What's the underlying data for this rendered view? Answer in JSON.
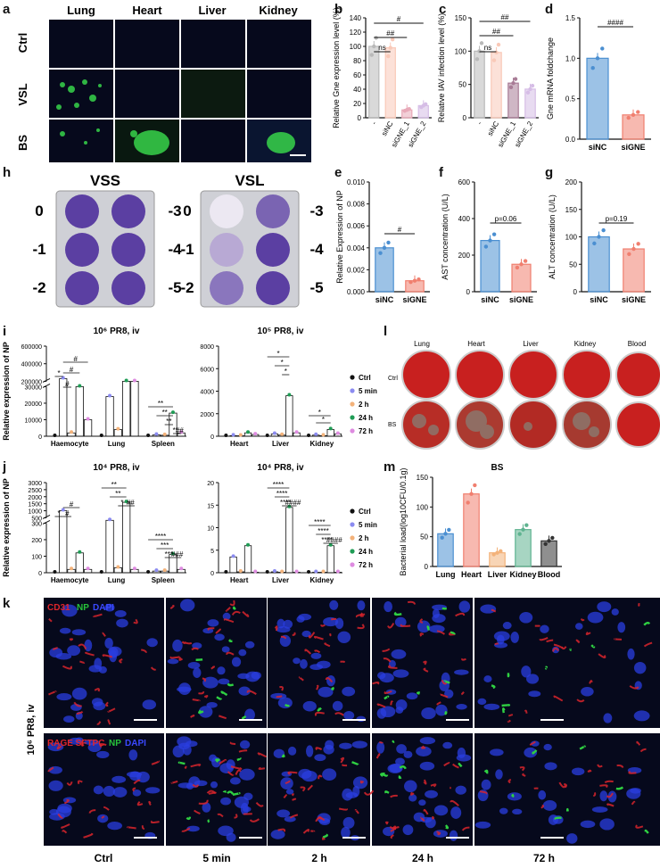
{
  "panel_letters": {
    "a": "a",
    "b": "b",
    "c": "c",
    "d": "d",
    "e": "e",
    "f": "f",
    "g": "g",
    "h": "h",
    "i": "i",
    "j": "j",
    "k": "k",
    "l": "l",
    "m": "m"
  },
  "panel_a": {
    "columns": [
      "Lung",
      "Heart",
      "Liver",
      "Kidney"
    ],
    "rows": [
      "Ctrl",
      "VSL",
      "BS"
    ]
  },
  "panel_h": {
    "titles": [
      "VSS",
      "VSL"
    ],
    "left_labels": [
      "0",
      "-1",
      "-2"
    ],
    "right_labels": [
      "-3",
      "-4",
      "-5"
    ]
  },
  "panel_k": {
    "top_legend": [
      "CD31",
      "NP",
      "DAPI"
    ],
    "bottom_legend": [
      "RAGE SFTPC",
      "NP",
      "DAPI"
    ],
    "legend_colors": [
      "#e0262b",
      "#27c23a",
      "#3b49ff"
    ],
    "side_label": "10⁶ PR8, iv",
    "timepoints": [
      "Ctrl",
      "5 min",
      "2 h",
      "24 h",
      "72 h"
    ]
  },
  "panel_l": {
    "columns": [
      "Lung",
      "Heart",
      "Liver",
      "Kidney",
      "Blood"
    ],
    "rows": [
      "Ctrl",
      "BS"
    ]
  },
  "timecourse_legend": {
    "labels": [
      "Ctrl",
      "5 min",
      "2 h",
      "24 h",
      "72 h"
    ],
    "colors": [
      "#111111",
      "#8b8bf0",
      "#f3b27a",
      "#1f9c55",
      "#de8be0"
    ]
  },
  "chart_data": [
    {
      "id": "b",
      "type": "bar",
      "categories": [
        "-",
        "siNC",
        "siGNE_1",
        "siGNE_2"
      ],
      "values": [
        100,
        98,
        11,
        17
      ],
      "ylabel": "Relative Gne expression level (%)",
      "ylim": [
        0,
        140
      ],
      "yticks": [
        0,
        20,
        40,
        60,
        80,
        100,
        120,
        140
      ],
      "colors": [
        "#b9b9b9",
        "#f9c9b8",
        "#e8a9b8",
        "#d6bde6"
      ],
      "annotations": [
        "ns",
        "##",
        "#"
      ]
    },
    {
      "id": "c",
      "type": "bar",
      "categories": [
        "-",
        "siNC",
        "siGNE_1",
        "siGNE_2"
      ],
      "values": [
        100,
        98,
        52,
        43
      ],
      "ylabel": "Relative IAV infection level (%)",
      "ylim": [
        0,
        150
      ],
      "yticks": [
        0,
        50,
        100,
        150
      ],
      "colors": [
        "#b9b9b9",
        "#f9c9b8",
        "#a87c96",
        "#d6bde6"
      ],
      "annotations": [
        "ns",
        "##",
        "##"
      ]
    },
    {
      "id": "d",
      "type": "bar",
      "categories": [
        "siNC",
        "siGNE"
      ],
      "values": [
        1.0,
        0.3
      ],
      "ylabel": "Gne mRNA foldchange",
      "ylim": [
        0,
        1.5
      ],
      "yticks": [
        "0.0",
        "0.5",
        "1.0",
        "1.5"
      ],
      "colors": [
        "#4b8fd1",
        "#f07f6f"
      ],
      "annotations": [
        "####"
      ]
    },
    {
      "id": "e",
      "type": "bar",
      "categories": [
        "siNC",
        "siGNE"
      ],
      "values": [
        0.004,
        0.001
      ],
      "ylabel": "Relative Expression of NP",
      "ylim": [
        0,
        0.01
      ],
      "yticks": [
        "0.000",
        "0.002",
        "0.004",
        "0.006",
        "0.008",
        "0.010"
      ],
      "colors": [
        "#4b8fd1",
        "#f07f6f"
      ],
      "annotations": [
        "#"
      ]
    },
    {
      "id": "f",
      "type": "bar",
      "categories": [
        "siNC",
        "siGNE"
      ],
      "values": [
        280,
        150
      ],
      "ylabel": "AST concentration (U/L)",
      "ylim": [
        0,
        600
      ],
      "yticks": [
        0,
        200,
        400,
        600
      ],
      "colors": [
        "#4b8fd1",
        "#f07f6f"
      ],
      "annotations": [
        "p=0.06"
      ]
    },
    {
      "id": "g",
      "type": "bar",
      "categories": [
        "siNC",
        "siGNE"
      ],
      "values": [
        100,
        78
      ],
      "ylabel": "ALT concentration (U/L)",
      "ylim": [
        0,
        200
      ],
      "yticks": [
        0,
        50,
        100,
        150,
        200
      ],
      "colors": [
        "#4b8fd1",
        "#f07f6f"
      ],
      "annotations": [
        "p=0.19"
      ]
    },
    {
      "id": "i-left",
      "type": "bar",
      "title": "10⁶ PR8,  iv",
      "ylabel": "Relative expression of NP",
      "categories": [
        "Haemocyte",
        "Lung",
        "Spleen"
      ],
      "series_names": [
        "Ctrl",
        "5 min",
        "2 h",
        "24 h",
        "72 h"
      ],
      "values": [
        [
          0,
          230000,
          2000,
          30000,
          10000
        ],
        [
          0,
          24000,
          4000,
          200000,
          200000
        ],
        [
          0,
          800,
          600,
          14000,
          2000
        ]
      ],
      "yticks_lower": [
        "0",
        "10000",
        "20000",
        "30000"
      ],
      "yticks_upper": [
        "200000",
        "400000",
        "600000"
      ],
      "annotations": [
        "*",
        "#",
        "#",
        "#",
        "**",
        "**",
        "**",
        "**",
        "##"
      ]
    },
    {
      "id": "i-right",
      "type": "bar",
      "title": "10⁵ PR8,  iv",
      "categories": [
        "Heart",
        "Liver",
        "Kidney"
      ],
      "series_names": [
        "Ctrl",
        "5 min",
        "2 h",
        "24 h",
        "72 h"
      ],
      "values": [
        [
          0,
          50,
          40,
          300,
          150
        ],
        [
          0,
          200,
          100,
          3600,
          300
        ],
        [
          0,
          100,
          50,
          600,
          200
        ]
      ],
      "ylim": [
        0,
        8000
      ],
      "yticks": [
        "0",
        "2000",
        "4000",
        "6000",
        "8000"
      ],
      "annotations": [
        "*",
        "*",
        "*",
        "*",
        "*"
      ]
    },
    {
      "id": "j-left",
      "type": "bar",
      "title": "10⁴ PR8,  iv",
      "ylabel": "Relative expression of NP",
      "categories": [
        "Haemocyte",
        "Lung",
        "Spleen"
      ],
      "series_names": [
        "Ctrl",
        "5 min",
        "2 h",
        "24 h",
        "72 h"
      ],
      "values": [
        [
          0,
          1000,
          20,
          120,
          20
        ],
        [
          0,
          320,
          30,
          1600,
          20
        ],
        [
          0,
          10,
          10,
          110,
          20
        ]
      ],
      "yticks_lower": [
        "0",
        "100",
        "200",
        "300"
      ],
      "yticks_upper": [
        "500",
        "1000",
        "1500",
        "2000",
        "2500",
        "3000"
      ],
      "annotations": [
        "*",
        "#",
        "#",
        "**",
        "**",
        "*",
        "##",
        "****",
        "***",
        "***",
        "###"
      ]
    },
    {
      "id": "j-right",
      "type": "bar",
      "title": "10⁴ PR8,  iv",
      "categories": [
        "Heart",
        "Liver",
        "Kidney"
      ],
      "series_names": [
        "Ctrl",
        "5 min",
        "2 h",
        "24 h",
        "72 h"
      ],
      "values": [
        [
          0,
          3.5,
          0.2,
          6,
          0.1
        ],
        [
          0,
          0.2,
          0.1,
          14.5,
          0.1
        ],
        [
          0,
          0.1,
          0.1,
          6,
          0.1
        ]
      ],
      "ylim": [
        0,
        20
      ],
      "yticks": [
        "0",
        "5",
        "10",
        "15",
        "20"
      ],
      "annotations": [
        "****",
        "****",
        "****",
        "####",
        "****",
        "****",
        "****",
        "####"
      ]
    },
    {
      "id": "m",
      "type": "bar",
      "title": "BS",
      "ylabel": "Bacterial load(log10CFU/0.1g)",
      "categories": [
        "Lung",
        "Heart",
        "Liver",
        "Kidney",
        "Blood"
      ],
      "values": [
        55,
        122,
        23,
        62,
        43
      ],
      "ylim": [
        0,
        150
      ],
      "yticks": [
        0,
        50,
        100,
        150
      ],
      "colors": [
        "#4b8fd1",
        "#f07f6f",
        "#f3b27a",
        "#5fb390",
        "#333333"
      ]
    }
  ]
}
